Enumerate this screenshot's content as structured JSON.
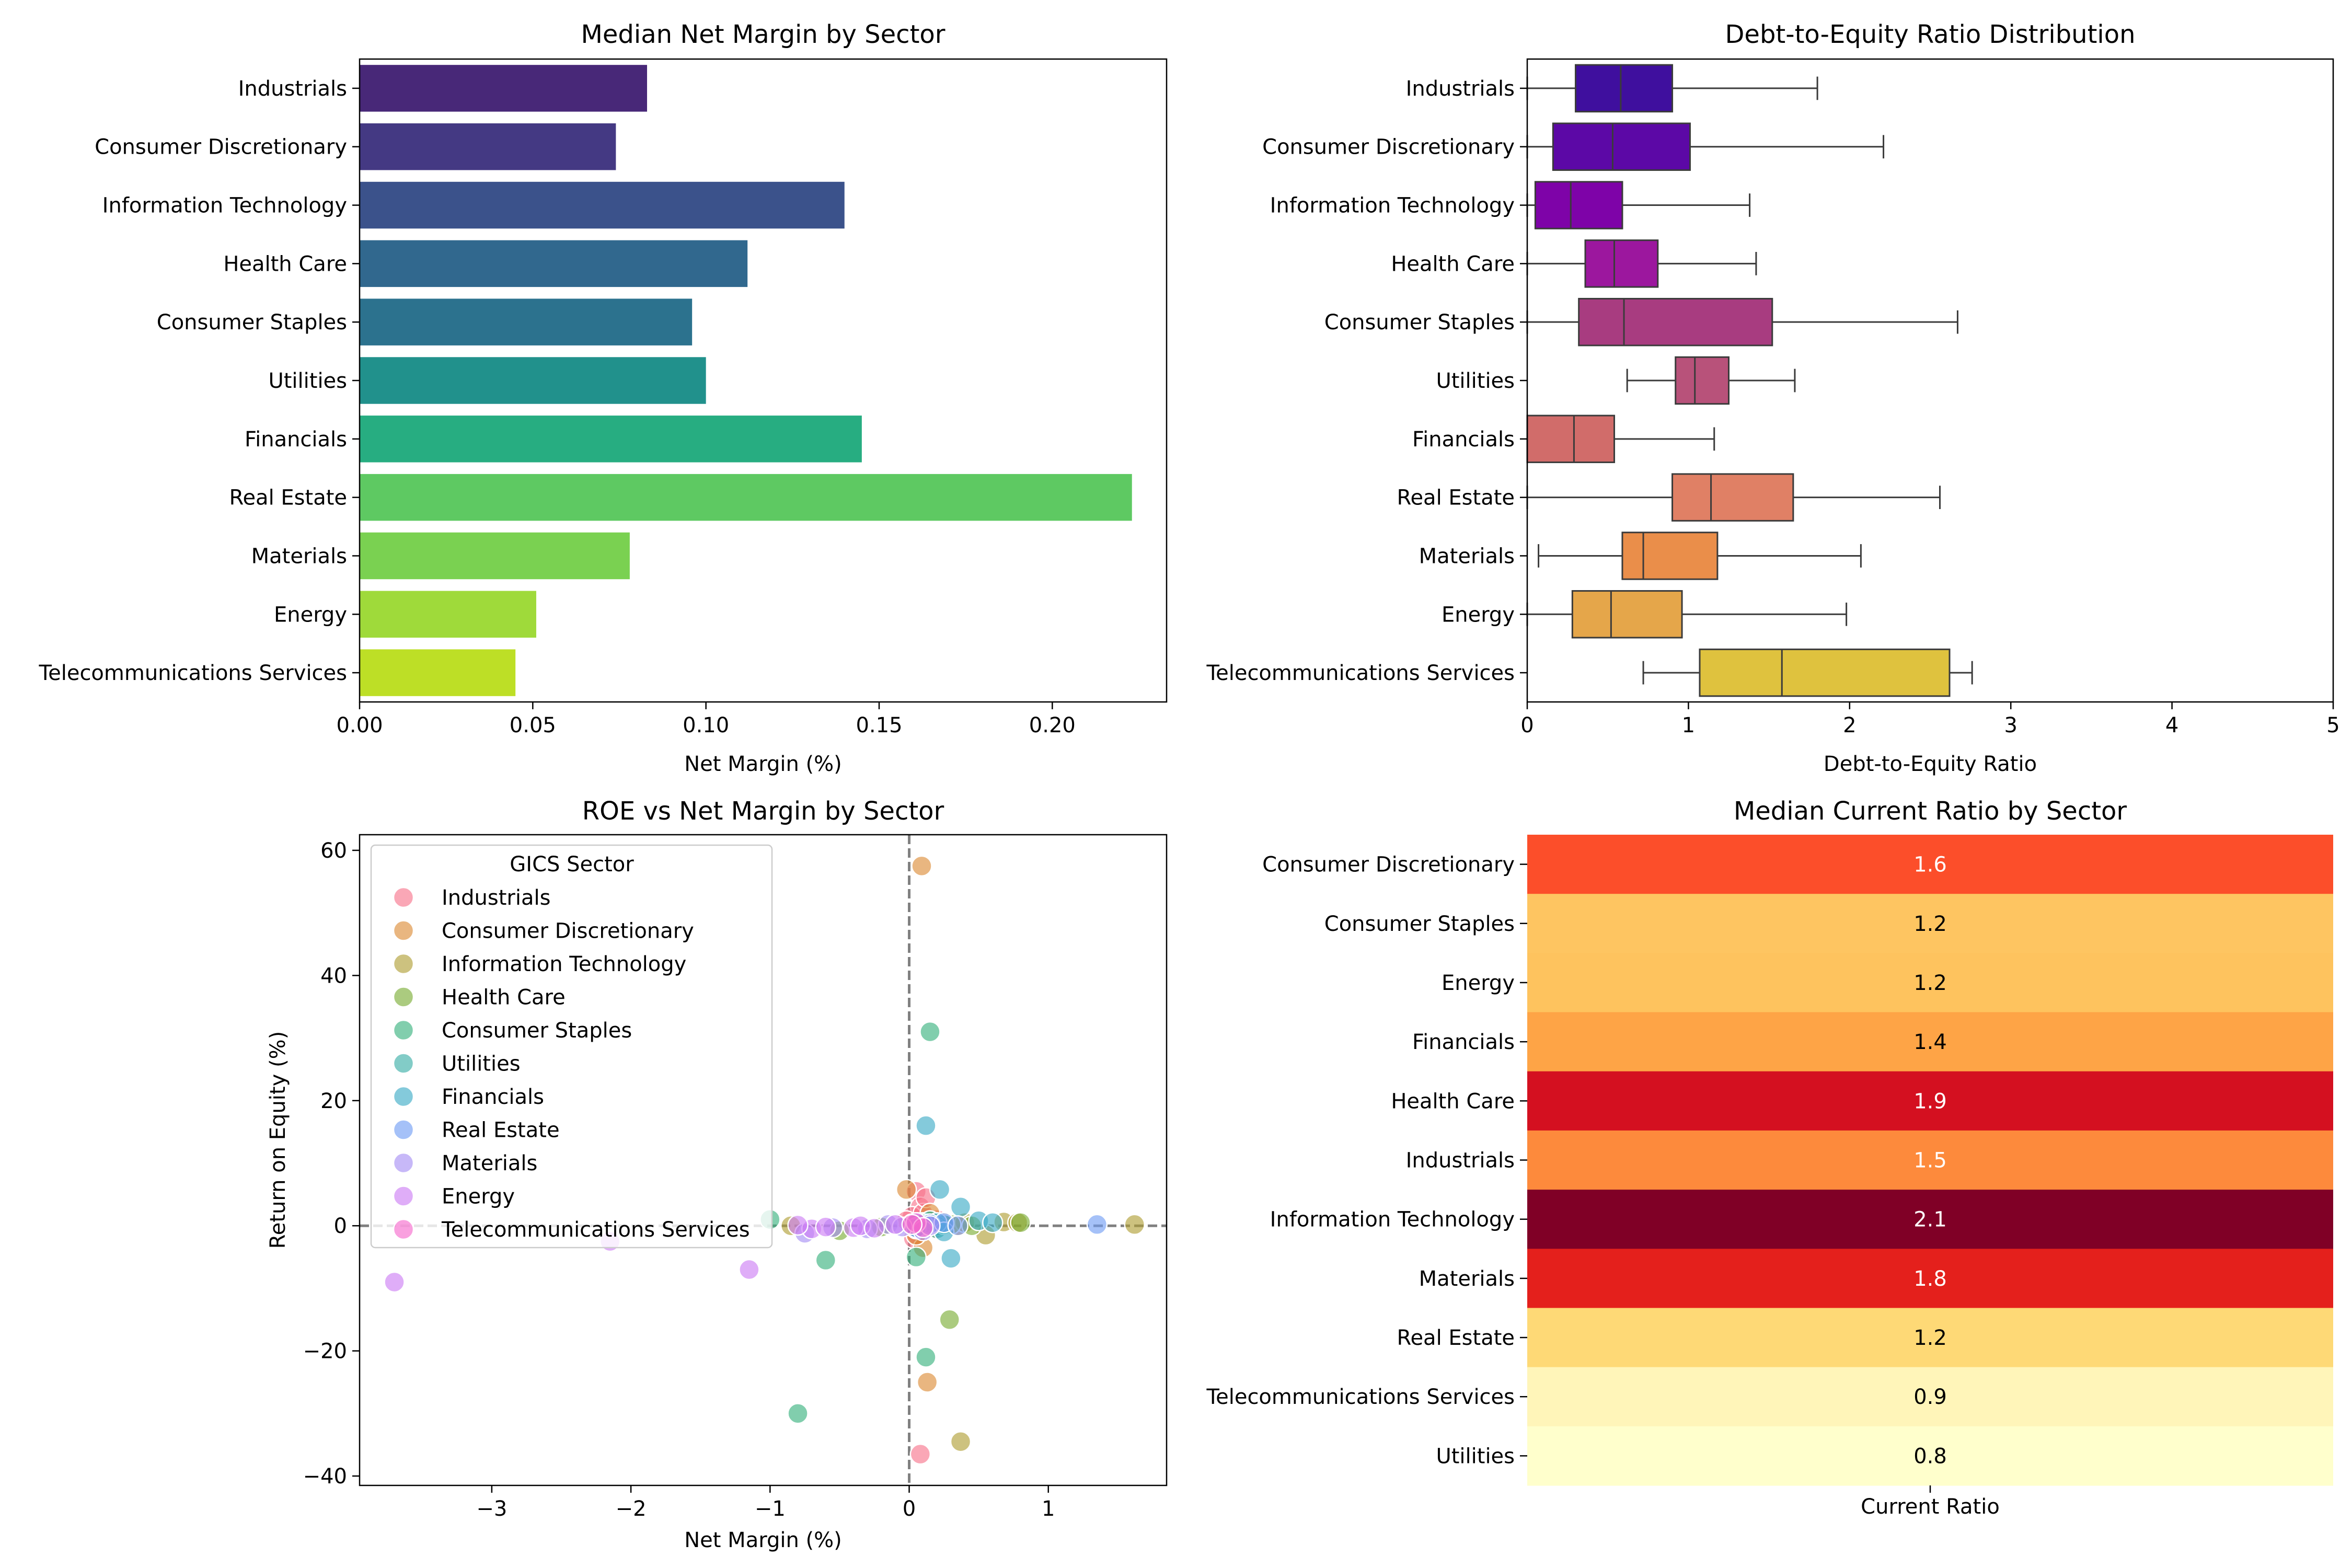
{
  "chart_data": [
    {
      "type": "bar",
      "orientation": "horizontal",
      "title": "Median Net Margin by Sector",
      "xlabel": "Net Margin (%)",
      "ylabel": "",
      "xlim": [
        0,
        0.233
      ],
      "xticks": [
        0.0,
        0.05,
        0.1,
        0.15,
        0.2
      ],
      "xtick_labels": [
        "0.00",
        "0.05",
        "0.10",
        "0.15",
        "0.20"
      ],
      "categories": [
        "Industrials",
        "Consumer Discretionary",
        "Information Technology",
        "Health Care",
        "Consumer Staples",
        "Utilities",
        "Financials",
        "Real Estate",
        "Materials",
        "Energy",
        "Telecommunications Services"
      ],
      "values": [
        0.083,
        0.074,
        0.14,
        0.112,
        0.096,
        0.1,
        0.145,
        0.223,
        0.078,
        0.051,
        0.045
      ],
      "colors": [
        "#482878",
        "#443983",
        "#3b528b",
        "#31688e",
        "#2c728e",
        "#21918c",
        "#27ad81",
        "#5ec962",
        "#7ad151",
        "#9fda3a",
        "#bddf26"
      ],
      "grid": false
    },
    {
      "type": "box",
      "orientation": "horizontal",
      "title": "Debt-to-Equity Ratio Distribution",
      "xlabel": "Debt-to-Equity Ratio",
      "ylabel": "",
      "xlim": [
        0,
        5
      ],
      "xticks": [
        0,
        1,
        2,
        3,
        4,
        5
      ],
      "xtick_labels": [
        "0",
        "1",
        "2",
        "3",
        "4",
        "5"
      ],
      "categories": [
        "Industrials",
        "Consumer Discretionary",
        "Information Technology",
        "Health Care",
        "Consumer Staples",
        "Utilities",
        "Financials",
        "Real Estate",
        "Materials",
        "Energy",
        "Telecommunications Services"
      ],
      "boxes": [
        {
          "whisker_low": 0.0,
          "q1": 0.3,
          "median": 0.58,
          "q3": 0.9,
          "whisker_high": 1.8
        },
        {
          "whisker_low": 0.0,
          "q1": 0.16,
          "median": 0.53,
          "q3": 1.01,
          "whisker_high": 2.21
        },
        {
          "whisker_low": 0.0,
          "q1": 0.05,
          "median": 0.27,
          "q3": 0.59,
          "whisker_high": 1.38
        },
        {
          "whisker_low": 0.0,
          "q1": 0.36,
          "median": 0.54,
          "q3": 0.81,
          "whisker_high": 1.42
        },
        {
          "whisker_low": 0.0,
          "q1": 0.32,
          "median": 0.6,
          "q3": 1.52,
          "whisker_high": 2.67
        },
        {
          "whisker_low": 0.62,
          "q1": 0.92,
          "median": 1.04,
          "q3": 1.25,
          "whisker_high": 1.66
        },
        {
          "whisker_low": 0.0,
          "q1": 0.0,
          "median": 0.29,
          "q3": 0.54,
          "whisker_high": 1.16
        },
        {
          "whisker_low": 0.0,
          "q1": 0.9,
          "median": 1.14,
          "q3": 1.65,
          "whisker_high": 2.56
        },
        {
          "whisker_low": 0.07,
          "q1": 0.59,
          "median": 0.72,
          "q3": 1.18,
          "whisker_high": 2.07
        },
        {
          "whisker_low": 0.0,
          "q1": 0.28,
          "median": 0.52,
          "q3": 0.96,
          "whisker_high": 1.98
        },
        {
          "whisker_low": 0.72,
          "q1": 1.07,
          "median": 1.58,
          "q3": 2.62,
          "whisker_high": 2.76
        }
      ],
      "colors": [
        "#3f0f9e",
        "#5c08a6",
        "#7e03a8",
        "#9c179e",
        "#a83c80",
        "#b8527a",
        "#d16c6a",
        "#e08065",
        "#ea8e4a",
        "#e5a64a",
        "#dfc23e"
      ],
      "grid": false
    },
    {
      "type": "scatter",
      "title": "ROE vs Net Margin by Sector",
      "xlabel": "Net Margin (%)",
      "ylabel": "Return on Equity (%)",
      "xlim": [
        -3.95,
        1.85
      ],
      "ylim": [
        -41.5,
        62.5
      ],
      "xticks": [
        -3,
        -2,
        -1,
        0,
        1
      ],
      "xtick_labels": [
        "−3",
        "−2",
        "−1",
        "0",
        "1"
      ],
      "yticks": [
        -40,
        -20,
        0,
        20,
        40,
        60
      ],
      "ytick_labels": [
        "−40",
        "−20",
        "0",
        "20",
        "40",
        "60"
      ],
      "reference_lines": {
        "x": 0,
        "y": 0,
        "style": "dashed"
      },
      "legend": {
        "title": "GICS Sector",
        "placement": "upper left"
      },
      "series": [
        {
          "name": "Industrials",
          "color": "#f77189",
          "points": [
            [
              0.05,
              5.5
            ],
            [
              0.08,
              3.0
            ],
            [
              0.02,
              1.5
            ],
            [
              0.1,
              2.0
            ],
            [
              0.06,
              -1.5
            ],
            [
              -0.02,
              0.8
            ],
            [
              0.15,
              0.5
            ],
            [
              0.03,
              -2.0
            ],
            [
              0.08,
              -36.5
            ],
            [
              0.12,
              4.5
            ],
            [
              0.04,
              0.0
            ],
            [
              0.2,
              1.0
            ]
          ]
        },
        {
          "name": "Consumer Discretionary",
          "color": "#dc8932",
          "points": [
            [
              0.09,
              57.5
            ],
            [
              0.13,
              -25.0
            ],
            [
              -0.02,
              5.8
            ],
            [
              0.1,
              -3.5
            ],
            [
              0.05,
              -1.5
            ],
            [
              0.25,
              0.5
            ],
            [
              0.35,
              0.0
            ],
            [
              0.15,
              2.0
            ],
            [
              0.06,
              0.5
            ],
            [
              0.18,
              -0.5
            ]
          ]
        },
        {
          "name": "Information Technology",
          "color": "#ae9d31",
          "points": [
            [
              1.62,
              0.2
            ],
            [
              0.37,
              -34.5
            ],
            [
              0.55,
              -1.5
            ],
            [
              0.68,
              0.6
            ],
            [
              0.78,
              0.5
            ],
            [
              0.02,
              0.3
            ],
            [
              0.25,
              0.2
            ],
            [
              0.4,
              0.5
            ],
            [
              -0.85,
              0.0
            ]
          ]
        },
        {
          "name": "Health Care",
          "color": "#77ab31",
          "points": [
            [
              0.29,
              -15.0
            ],
            [
              -0.5,
              -0.8
            ],
            [
              0.05,
              -0.5
            ],
            [
              0.1,
              0.5
            ],
            [
              0.8,
              0.5
            ],
            [
              0.15,
              0.8
            ],
            [
              0.3,
              0.2
            ],
            [
              0.45,
              0.0
            ],
            [
              -0.2,
              -0.2
            ]
          ]
        },
        {
          "name": "Consumer Staples",
          "color": "#33b07a",
          "points": [
            [
              0.15,
              31.0
            ],
            [
              0.12,
              -21.0
            ],
            [
              -0.8,
              -30.0
            ],
            [
              -0.6,
              -5.5
            ],
            [
              0.05,
              -5.0
            ],
            [
              0.1,
              0.5
            ],
            [
              0.2,
              0.0
            ],
            [
              -1.0,
              1.0
            ]
          ]
        },
        {
          "name": "Utilities",
          "color": "#36ada4",
          "points": [
            [
              0.1,
              0.5
            ],
            [
              0.05,
              0.3
            ],
            [
              0.2,
              -0.5
            ],
            [
              0.15,
              0.8
            ],
            [
              0.25,
              0.2
            ],
            [
              0.08,
              -0.2
            ]
          ]
        },
        {
          "name": "Financials",
          "color": "#38a9c5",
          "points": [
            [
              0.12,
              16.0
            ],
            [
              0.22,
              5.8
            ],
            [
              0.3,
              -5.2
            ],
            [
              0.37,
              3.0
            ],
            [
              0.2,
              0.5
            ],
            [
              0.1,
              0.3
            ],
            [
              0.5,
              0.8
            ],
            [
              0.25,
              -1.0
            ],
            [
              0.6,
              0.5
            ],
            [
              0.05,
              -0.5
            ]
          ]
        },
        {
          "name": "Real Estate",
          "color": "#6e9bf4",
          "points": [
            [
              1.35,
              0.2
            ],
            [
              0.15,
              0.3
            ],
            [
              0.25,
              0.5
            ],
            [
              0.35,
              0.0
            ],
            [
              0.05,
              -0.3
            ]
          ]
        },
        {
          "name": "Materials",
          "color": "#a48cf4",
          "points": [
            [
              -0.75,
              -1.2
            ],
            [
              -0.3,
              -0.5
            ],
            [
              0.05,
              0.5
            ],
            [
              0.1,
              -0.8
            ],
            [
              -0.15,
              0.2
            ],
            [
              0.15,
              0.0
            ],
            [
              -0.55,
              -0.3
            ],
            [
              -0.05,
              -0.2
            ]
          ]
        },
        {
          "name": "Energy",
          "color": "#cc7af4",
          "points": [
            [
              -3.7,
              -9.0
            ],
            [
              -2.15,
              -2.5
            ],
            [
              -1.15,
              -7.0
            ],
            [
              -0.7,
              -0.5
            ],
            [
              -0.4,
              -0.3
            ],
            [
              -0.1,
              0.2
            ],
            [
              -0.6,
              -0.2
            ],
            [
              -0.35,
              0.0
            ],
            [
              -0.25,
              -0.4
            ],
            [
              -0.8,
              0.1
            ]
          ]
        },
        {
          "name": "Telecommunications Services",
          "color": "#f565cc",
          "points": [
            [
              0.05,
              0.5
            ],
            [
              0.1,
              -0.3
            ],
            [
              0.02,
              0.2
            ]
          ]
        }
      ],
      "grid": false
    },
    {
      "type": "heatmap",
      "title": "Median Current Ratio by Sector",
      "xlabel": "Current Ratio",
      "ylabel": "",
      "rows": [
        "Consumer Discretionary",
        "Consumer Staples",
        "Energy",
        "Financials",
        "Health Care",
        "Industrials",
        "Information Technology",
        "Materials",
        "Real Estate",
        "Telecommunications Services",
        "Utilities"
      ],
      "values": [
        1.6,
        1.2,
        1.2,
        1.4,
        1.9,
        1.5,
        2.1,
        1.8,
        1.2,
        0.9,
        0.8
      ],
      "value_labels": [
        "1.6",
        "1.2",
        "1.2",
        "1.4",
        "1.9",
        "1.5",
        "2.1",
        "1.8",
        "1.2",
        "0.9",
        "0.8"
      ],
      "colors": [
        "#fc4e2a",
        "#fec561",
        "#fec35e",
        "#fea446",
        "#d41020",
        "#fd8a3c",
        "#800026",
        "#e4201c",
        "#fed976",
        "#fff5b9",
        "#ffffcc"
      ],
      "text_colors": [
        "#ffffff",
        "#000000",
        "#000000",
        "#000000",
        "#ffffff",
        "#ffffff",
        "#ffffff",
        "#ffffff",
        "#000000",
        "#000000",
        "#000000"
      ],
      "colormap": "YlOrRd",
      "grid": false
    }
  ]
}
